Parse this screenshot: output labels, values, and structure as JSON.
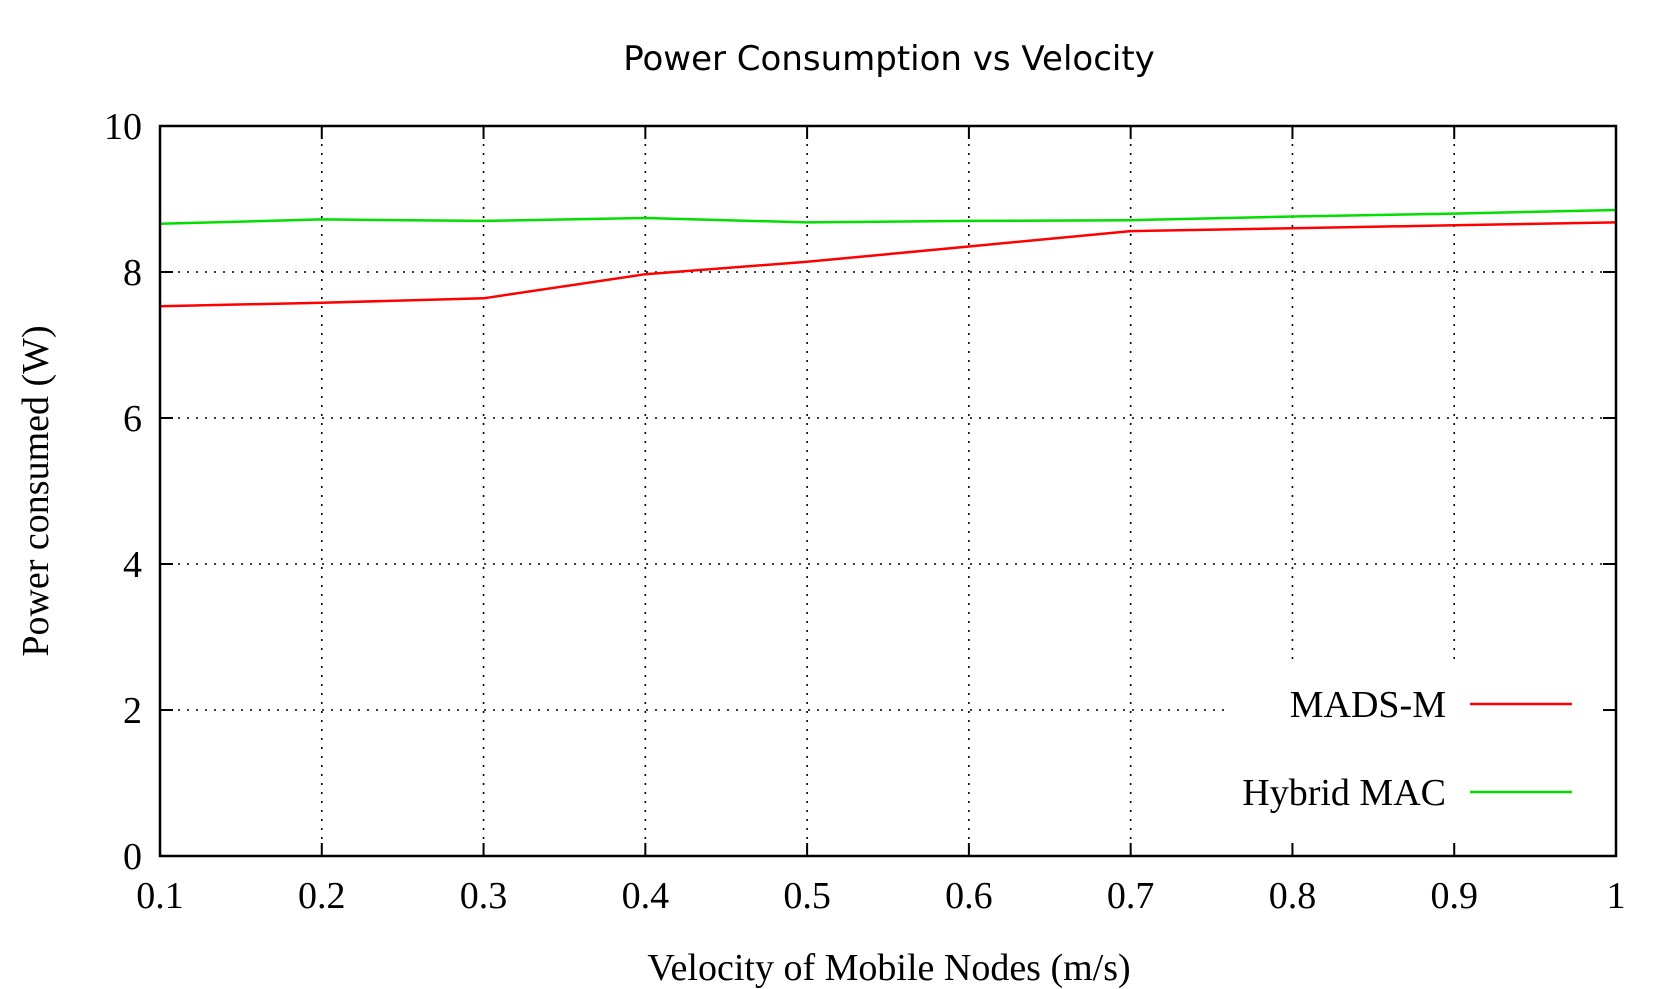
{
  "chart_data": {
    "type": "line",
    "title": "Power Consumption vs Velocity",
    "xlabel": "Velocity of Mobile Nodes (m/s)",
    "ylabel": "Power consumed (W)",
    "xlim": [
      0.1,
      1.0
    ],
    "ylim": [
      0,
      10
    ],
    "xticks": [
      "0.1",
      "0.2",
      "0.3",
      "0.4",
      "0.5",
      "0.6",
      "0.7",
      "0.8",
      "0.9",
      "1"
    ],
    "yticks": [
      "0",
      "2",
      "4",
      "6",
      "8",
      "10"
    ],
    "grid": true,
    "legend_position": "bottom-right",
    "x": [
      0.1,
      0.2,
      0.3,
      0.4,
      0.5,
      0.6,
      0.7,
      0.8,
      0.9,
      1.0
    ],
    "series": [
      {
        "name": "MADS-M",
        "color": "#ff0000",
        "values": [
          7.53,
          7.58,
          7.64,
          7.97,
          8.14,
          8.35,
          8.56,
          8.6,
          8.64,
          8.68
        ]
      },
      {
        "name": "Hybrid MAC",
        "color": "#00e000",
        "values": [
          8.66,
          8.72,
          8.7,
          8.74,
          8.68,
          8.7,
          8.71,
          8.76,
          8.8,
          8.85
        ]
      }
    ]
  }
}
